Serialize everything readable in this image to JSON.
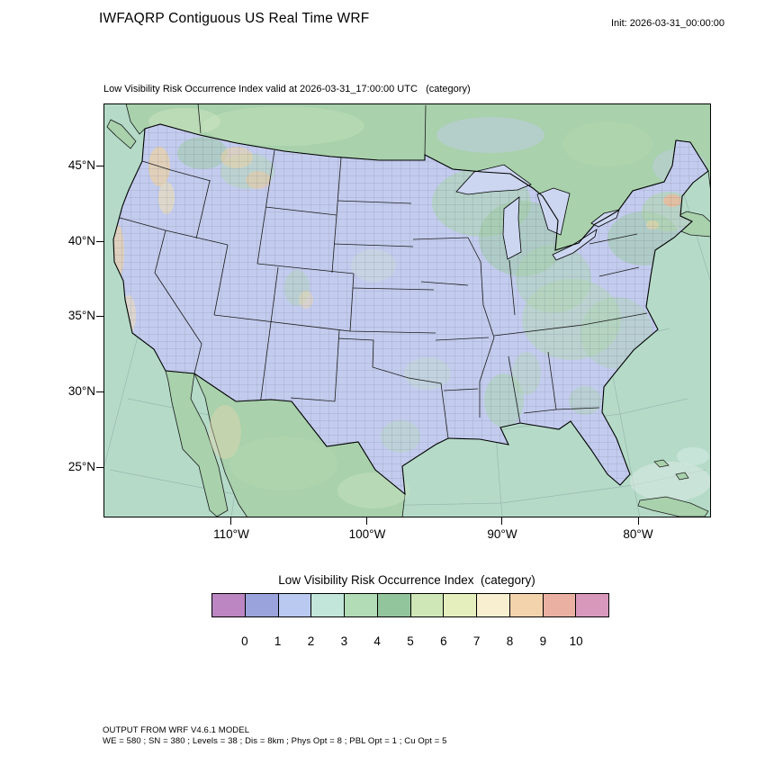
{
  "header": {
    "title": "IWFAQRP Contiguous US Real Time WRF",
    "init": "Init: 2026-03-31_00:00:00"
  },
  "map": {
    "subtitle": "Low Visibility Risk Occurrence Index valid at 2026-03-31_17:00:00 UTC   (category)",
    "y_axis_labels": [
      "45°N",
      "40°N",
      "35°N",
      "30°N",
      "25°N"
    ],
    "x_axis_labels": [
      "110°W",
      "100°W",
      "90°W",
      "80°W"
    ],
    "colors": {
      "ocean": "#b5dbc8",
      "other_land": "#a8d1ac",
      "us_land": "#c3ccee",
      "lakes": "#ccd6f0"
    }
  },
  "legend": {
    "title": "Low Visibility Risk Occurrence Index  (category)",
    "tick_labels": [
      "0",
      "1",
      "2",
      "3",
      "4",
      "5",
      "6",
      "7",
      "8",
      "9",
      "10"
    ],
    "colors": [
      "#bb86c2",
      "#9aa3dc",
      "#b9c9ef",
      "#c2e6d9",
      "#b1dcb5",
      "#93c59c",
      "#cfe7b6",
      "#e4efbd",
      "#f7efcf",
      "#f3d3ac",
      "#eab0a2",
      "#d898bc"
    ]
  },
  "footer": {
    "line1": "OUTPUT FROM WRF V4.6.1 MODEL",
    "line2": "WE = 580 ; SN = 380 ; Levels = 38 ; Dis = 8km ; Phys Opt = 8 ; PBL Opt = 1 ; Cu Opt = 5"
  }
}
